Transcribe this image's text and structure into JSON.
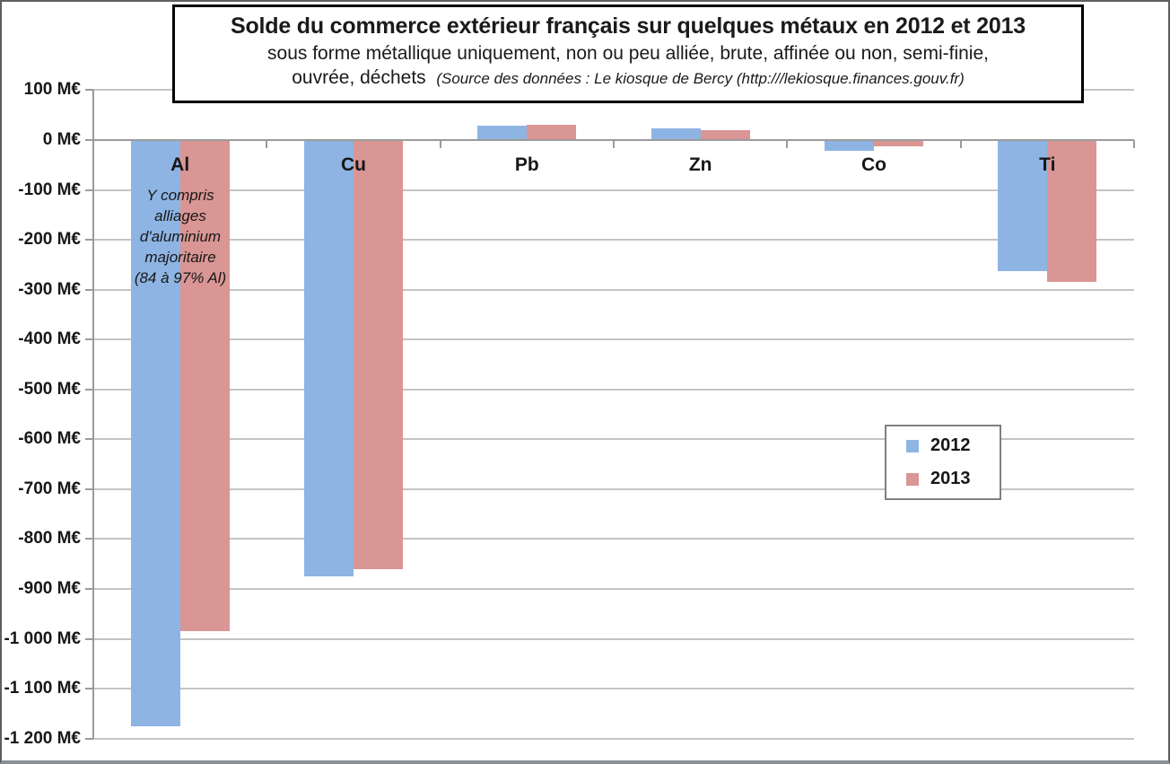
{
  "title": {
    "main": "Solde du commerce extérieur français sur quelques métaux en 2012 et 2013",
    "sub_line1": "sous forme métallique uniquement, non ou peu alliée, brute, affinée ou non, semi-finie,",
    "sub_line2": "ouvrée, déchets",
    "source": "(Source des données : Le kiosque de Bercy (http:///lekiosque.finances.gouv.fr)"
  },
  "annotation": {
    "category": "Al",
    "text": "Y compris\nalliages\nd'aluminium\nmajoritaire\n(84 à 97% Al)"
  },
  "legend": {
    "items": [
      {
        "label": "2012",
        "color": "#8EB4E3"
      },
      {
        "label": "2013",
        "color": "#D99694"
      }
    ]
  },
  "colors": {
    "series_2012": "#8EB4E3",
    "series_2013": "#D99694",
    "gridline": "#C4C4C4",
    "axis": "#9B9B9B"
  },
  "chart_data": {
    "type": "bar",
    "categories": [
      "Al",
      "Cu",
      "Pb",
      "Zn",
      "Co",
      "Ti"
    ],
    "series": [
      {
        "name": "2012",
        "color": "#8EB4E3",
        "values": [
          -1175,
          -875,
          28,
          24,
          -22,
          -262
        ]
      },
      {
        "name": "2013",
        "color": "#D99694",
        "values": [
          -985,
          -860,
          31,
          20,
          -13,
          -285
        ]
      }
    ],
    "unit": "M€",
    "ylim": [
      -1200,
      100
    ],
    "ytick_step": 100,
    "ytick_labels": [
      "100 M€",
      "0 M€",
      "-100 M€",
      "-200 M€",
      "-300 M€",
      "-400 M€",
      "-500 M€",
      "-600 M€",
      "-700 M€",
      "-800 M€",
      "-900 M€",
      "-1 000 M€",
      "-1 100 M€",
      "-1 200 M€"
    ],
    "grid": true,
    "legend_position": "middle-right",
    "category_labels_below_zero_axis": true
  }
}
